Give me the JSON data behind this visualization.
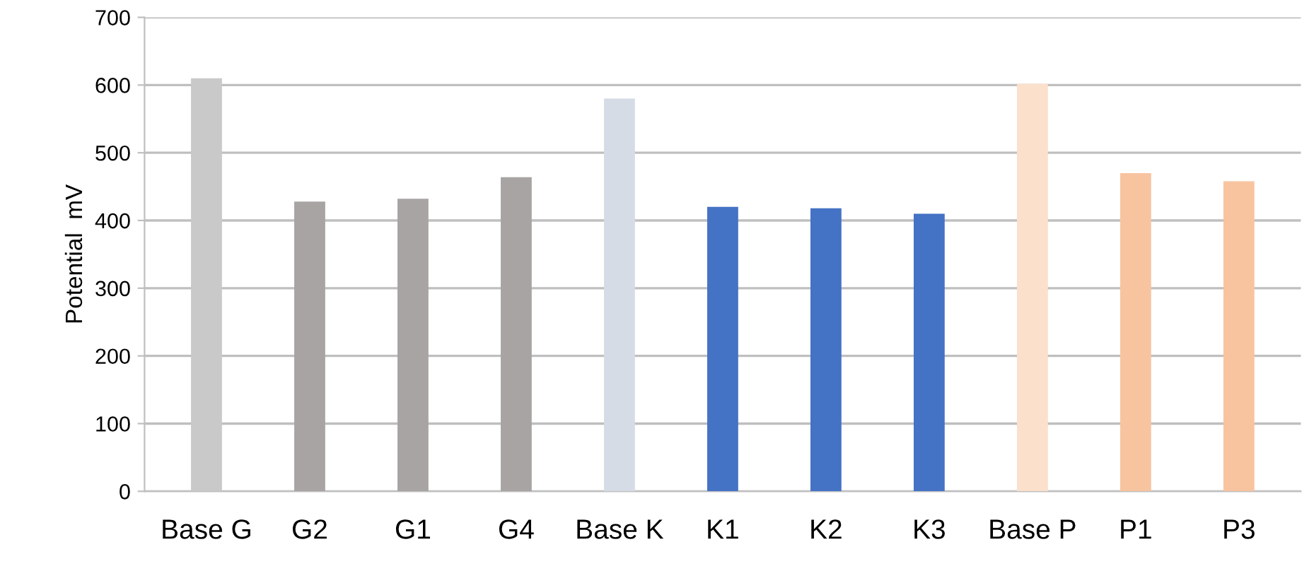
{
  "chart_data": {
    "type": "bar",
    "ylabel": "Potential  mV",
    "categories": [
      "Base G",
      "G2",
      "G1",
      "G4",
      "Base K",
      "K1",
      "K2",
      "K3",
      "Base P",
      "P1",
      "P3"
    ],
    "values": [
      610,
      428,
      432,
      464,
      580,
      420,
      418,
      410,
      602,
      470,
      458
    ],
    "colors": [
      "#c9c9c9",
      "#a8a4a4",
      "#a8a4a4",
      "#a8a4a4",
      "#d6dce5",
      "#4472c4",
      "#4472c4",
      "#4472c4",
      "#fbe0cc",
      "#f8c4a0",
      "#f8c4a0"
    ],
    "ylim": [
      0,
      700
    ],
    "yticks": [
      0,
      100,
      200,
      300,
      400,
      500,
      600,
      700
    ],
    "grid": "y",
    "legend": false
  }
}
